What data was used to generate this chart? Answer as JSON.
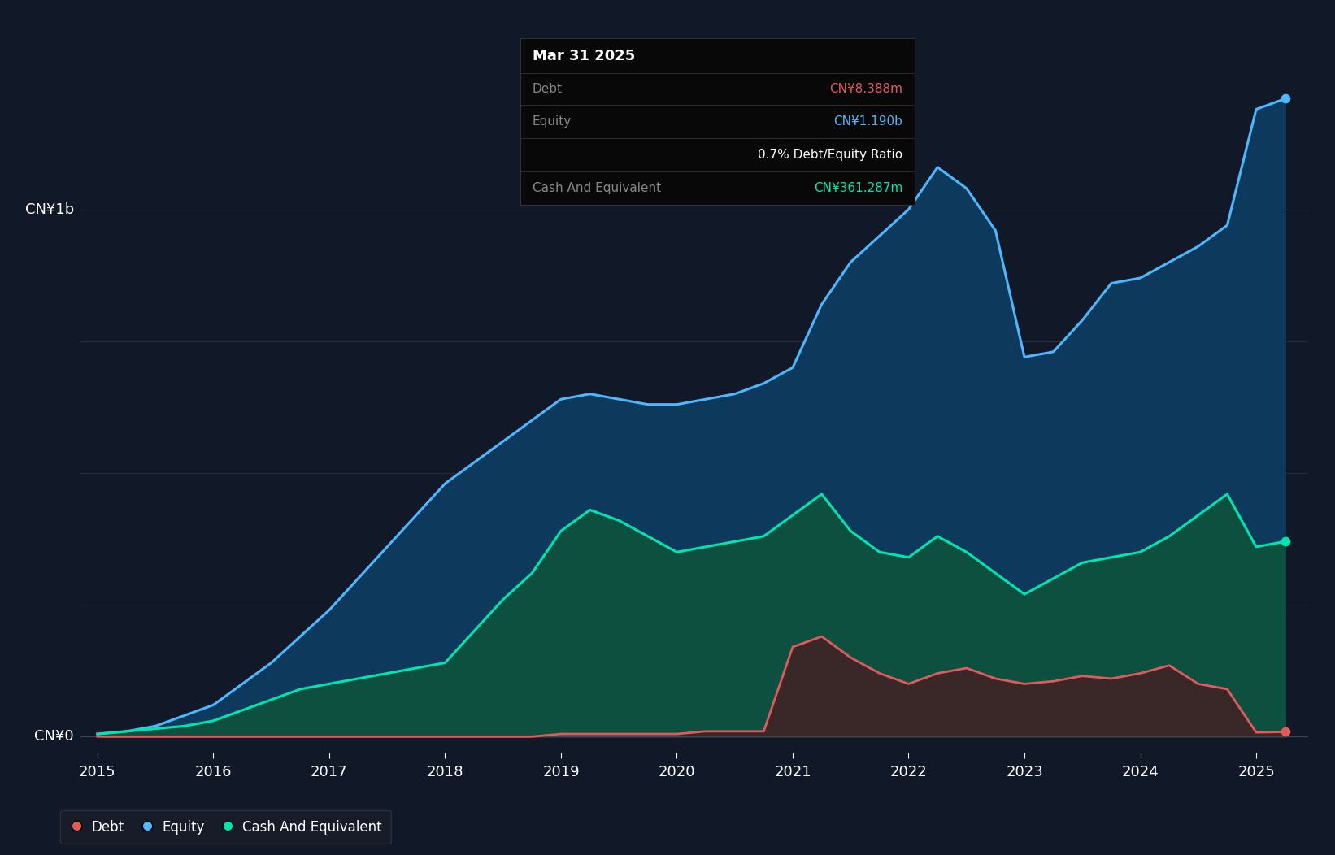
{
  "background_color": "#111827",
  "plot_bg_color": "#111827",
  "grid_color": "#2a3040",
  "ylabel_top": "CN¥1b",
  "ylabel_bottom": "CN¥0",
  "x_ticks": [
    2015,
    2016,
    2017,
    2018,
    2019,
    2020,
    2021,
    2022,
    2023,
    2024,
    2025
  ],
  "tooltip_title": "Mar 31 2025",
  "tooltip_debt_label": "Debt",
  "tooltip_debt_value": "CN¥8.388m",
  "tooltip_equity_label": "Equity",
  "tooltip_equity_value": "CN¥1.190b",
  "tooltip_ratio": "0.7% Debt/Equity Ratio",
  "tooltip_cash_label": "Cash And Equivalent",
  "tooltip_cash_value": "CN¥361.287m",
  "debt_color": "#e05c5c",
  "equity_color": "#4db8ff",
  "cash_color": "#00e5b0",
  "equity_fill_color": "#0d3a5c",
  "cash_fill_color": "#0d5040",
  "debt_fill_color": "#3a2828",
  "legend_debt": "Debt",
  "legend_equity": "Equity",
  "legend_cash": "Cash And Equivalent",
  "years": [
    2015.0,
    2015.25,
    2015.5,
    2015.75,
    2016.0,
    2016.25,
    2016.5,
    2016.75,
    2017.0,
    2017.25,
    2017.5,
    2017.75,
    2018.0,
    2018.25,
    2018.5,
    2018.75,
    2019.0,
    2019.25,
    2019.5,
    2019.75,
    2020.0,
    2020.25,
    2020.5,
    2020.75,
    2021.0,
    2021.25,
    2021.5,
    2021.75,
    2022.0,
    2022.25,
    2022.5,
    2022.75,
    2023.0,
    2023.25,
    2023.5,
    2023.75,
    2024.0,
    2024.25,
    2024.5,
    2024.75,
    2025.0,
    2025.25
  ],
  "equity": [
    0.005,
    0.01,
    0.02,
    0.04,
    0.06,
    0.1,
    0.14,
    0.19,
    0.24,
    0.3,
    0.36,
    0.42,
    0.48,
    0.52,
    0.56,
    0.6,
    0.64,
    0.65,
    0.64,
    0.63,
    0.63,
    0.64,
    0.65,
    0.67,
    0.7,
    0.82,
    0.9,
    0.95,
    1.0,
    1.08,
    1.04,
    0.96,
    0.72,
    0.73,
    0.79,
    0.86,
    0.87,
    0.9,
    0.93,
    0.97,
    1.19,
    1.21
  ],
  "cash": [
    0.005,
    0.01,
    0.015,
    0.02,
    0.03,
    0.05,
    0.07,
    0.09,
    0.1,
    0.11,
    0.12,
    0.13,
    0.14,
    0.2,
    0.26,
    0.31,
    0.39,
    0.43,
    0.41,
    0.38,
    0.35,
    0.36,
    0.37,
    0.38,
    0.42,
    0.46,
    0.39,
    0.35,
    0.34,
    0.38,
    0.35,
    0.31,
    0.27,
    0.3,
    0.33,
    0.34,
    0.35,
    0.38,
    0.42,
    0.46,
    0.36,
    0.37
  ],
  "debt": [
    0.0,
    0.0,
    0.0,
    0.0,
    0.0,
    0.0,
    0.0,
    0.0,
    0.0,
    0.0,
    0.0,
    0.0,
    0.0,
    0.0,
    0.0,
    0.0,
    0.005,
    0.005,
    0.005,
    0.005,
    0.005,
    0.01,
    0.01,
    0.01,
    0.17,
    0.19,
    0.15,
    0.12,
    0.1,
    0.12,
    0.13,
    0.11,
    0.1,
    0.105,
    0.115,
    0.11,
    0.12,
    0.135,
    0.1,
    0.09,
    0.008,
    0.009
  ]
}
